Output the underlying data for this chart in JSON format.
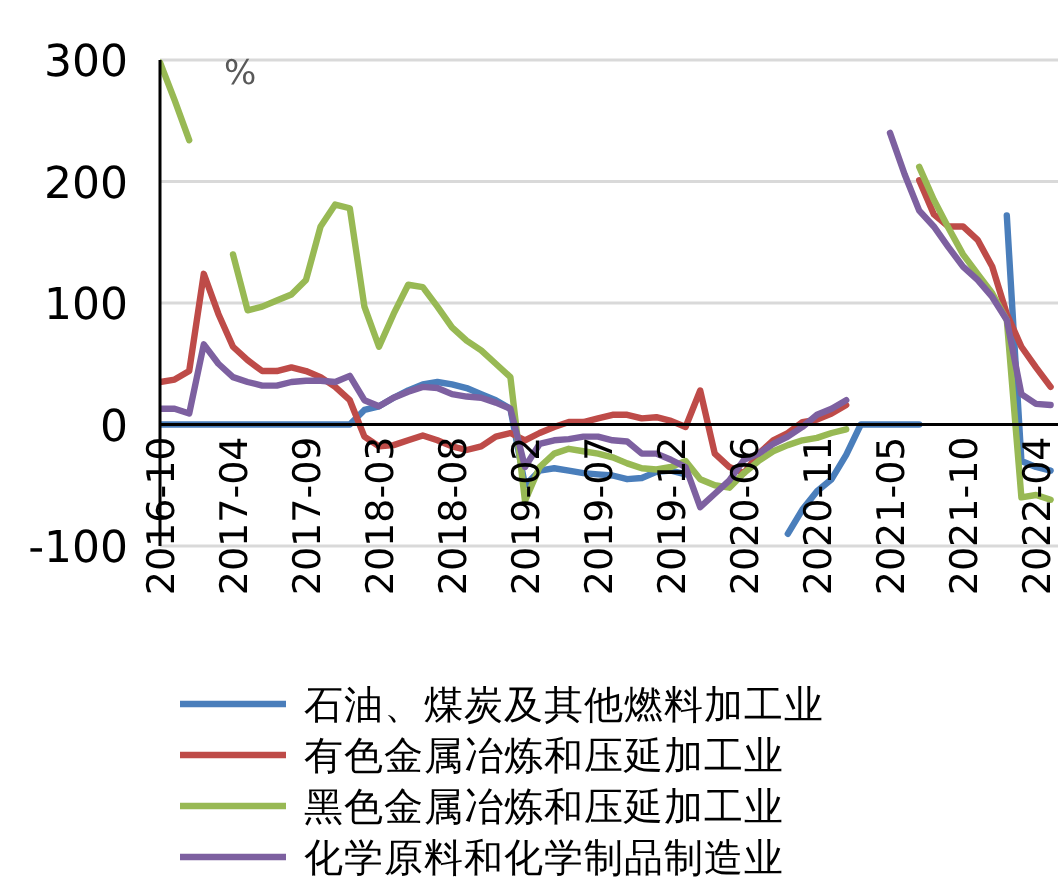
{
  "chart_data": {
    "type": "line",
    "categories": [
      "2016-10",
      null,
      null,
      null,
      null,
      "2017-04",
      null,
      null,
      null,
      null,
      "2017-09",
      null,
      null,
      null,
      null,
      "2018-03",
      null,
      null,
      null,
      null,
      "2018-08",
      null,
      null,
      null,
      null,
      "2019-02",
      null,
      null,
      null,
      null,
      "2019-07",
      null,
      null,
      null,
      null,
      "2019-12",
      null,
      null,
      null,
      null,
      "2020-06",
      null,
      null,
      null,
      null,
      "2020-11",
      null,
      null,
      null,
      null,
      "2021-05",
      null,
      null,
      null,
      null,
      "2021-10",
      null,
      null,
      null,
      null,
      "2022-04",
      null
    ],
    "series": [
      {
        "name": "石油、煤炭及其他燃料加工业",
        "color": "#4a7ebb",
        "values": [
          0,
          0,
          0,
          0,
          0,
          0,
          0,
          0,
          0,
          0,
          0,
          0,
          0,
          0,
          12,
          15,
          22,
          28,
          33,
          35,
          33,
          30,
          25,
          20,
          13,
          -50,
          -38,
          -36,
          -38,
          -40,
          -41,
          -42,
          -45,
          -44,
          -39,
          -38,
          -41,
          null,
          null,
          null,
          null,
          null,
          null,
          -90,
          -70,
          -55,
          -45,
          -25,
          0,
          0,
          0,
          0,
          0,
          null,
          null,
          null,
          null,
          null,
          172,
          -30,
          -35,
          -38
        ]
      },
      {
        "name": "有色金属冶炼和压延加工业",
        "color": "#be4b48",
        "values": [
          35,
          37,
          44,
          124,
          91,
          64,
          53,
          44,
          44,
          47,
          44,
          39,
          31,
          20,
          -10,
          -18,
          -17,
          -13,
          -9,
          -13,
          -18,
          -21,
          -18,
          -10,
          -7,
          -13,
          -7,
          -2,
          2,
          2,
          5,
          8,
          8,
          5,
          6,
          3,
          -2,
          28,
          -24,
          -35,
          -40,
          -24,
          -13,
          -7,
          2,
          4,
          9,
          16,
          null,
          null,
          null,
          null,
          201,
          173,
          163,
          163,
          152,
          130,
          91,
          64,
          47,
          31
        ]
      },
      {
        "name": "黑色金属冶炼和压延加工业",
        "color": "#98b954",
        "values": [
          298,
          267,
          234,
          null,
          null,
          140,
          94,
          97,
          102,
          107,
          119,
          163,
          181,
          178,
          97,
          64,
          91,
          115,
          113,
          97,
          80,
          69,
          61,
          50,
          39,
          -63,
          -35,
          -24,
          -20,
          -22,
          -24,
          -27,
          -32,
          -36,
          -37,
          -35,
          -30,
          -45,
          -50,
          -52,
          -40,
          -30,
          -22,
          -17,
          -13,
          -11,
          -7,
          -4,
          null,
          null,
          null,
          null,
          212,
          185,
          162,
          140,
          124,
          108,
          86,
          -60,
          -58,
          -62
        ]
      },
      {
        "name": "化学原料和化学制品制造业",
        "color": "#7d60a0",
        "values": [
          13,
          13,
          9,
          66,
          50,
          39,
          35,
          32,
          32,
          35,
          36,
          36,
          35,
          40,
          20,
          15,
          22,
          27,
          31,
          30,
          25,
          23,
          22,
          18,
          13,
          -35,
          -16,
          -13,
          -12,
          -10,
          -10,
          -13,
          -14,
          -24,
          -24,
          -29,
          -35,
          -68,
          -57,
          -46,
          -29,
          -24,
          -16,
          -10,
          -2,
          8,
          13,
          20,
          null,
          null,
          240,
          206,
          176,
          163,
          146,
          130,
          119,
          105,
          86,
          25,
          17,
          16
        ]
      }
    ],
    "ylim": [
      -100,
      300
    ],
    "yticks": [
      -100,
      0,
      100,
      200,
      300
    ],
    "grid": "y",
    "legend": "bottom",
    "annotations": [
      "%"
    ]
  }
}
